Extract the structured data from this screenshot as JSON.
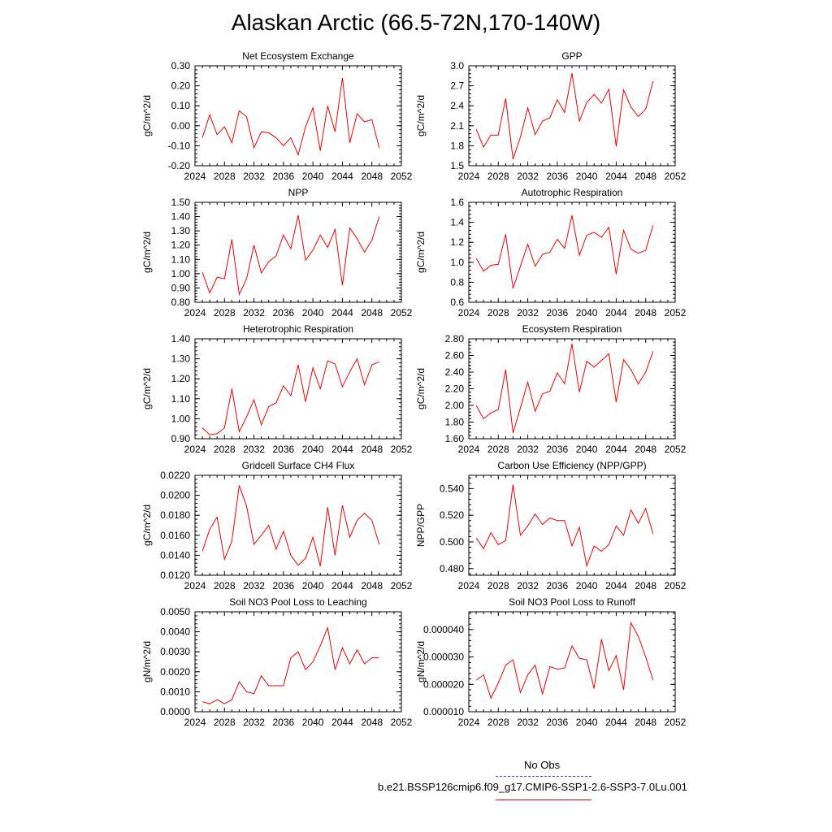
{
  "title": "Alaskan Arctic (66.5-72N,170-140W)",
  "legend": {
    "obs_label": "No Obs",
    "obs_color": "#4444cc",
    "model_label": "b.e21.BSSP126cmip6.f09_g17.CMIP6-SSP1-2.6-SSP3-7.0Lu.001",
    "model_color": "#ee0000"
  },
  "chart_data": [
    {
      "type": "line",
      "title": "Net Ecosystem Exchange",
      "ylabel": "gC/m^2/d",
      "xlim": [
        2024,
        2052
      ],
      "ylim": [
        -0.2,
        0.3
      ],
      "xticks": [
        "2024",
        "2028",
        "2032",
        "2036",
        "2040",
        "2044",
        "2048",
        "2052"
      ],
      "yticks": [
        "-0.20",
        "-0.10",
        "0.00",
        "0.10",
        "0.20",
        "0.30"
      ],
      "series": [
        {
          "color": "#ee0000",
          "x": [
            2025,
            2026,
            2027,
            2028,
            2029,
            2030,
            2031,
            2032,
            2033,
            2034,
            2035,
            2036,
            2037,
            2038,
            2039,
            2040,
            2041,
            2042,
            2043,
            2044,
            2045,
            2046,
            2047,
            2048,
            2049
          ],
          "values": [
            -0.06,
            0.055,
            -0.045,
            -0.005,
            -0.085,
            0.075,
            0.045,
            -0.11,
            -0.03,
            -0.035,
            -0.06,
            -0.1,
            -0.06,
            -0.145,
            -0.005,
            0.09,
            -0.125,
            0.1,
            -0.03,
            0.24,
            -0.085,
            0.06,
            0.02,
            0.03,
            -0.11
          ]
        }
      ]
    },
    {
      "type": "line",
      "title": "GPP",
      "ylabel": "gC/m^2/d",
      "xlim": [
        2024,
        2052
      ],
      "ylim": [
        1.5,
        3.0
      ],
      "xticks": [
        "2024",
        "2028",
        "2032",
        "2036",
        "2040",
        "2044",
        "2048",
        "2052"
      ],
      "yticks": [
        "1.5",
        "1.8",
        "2.1",
        "2.4",
        "2.7",
        "3.0"
      ],
      "series": [
        {
          "color": "#ee0000",
          "x": [
            2025,
            2026,
            2027,
            2028,
            2029,
            2030,
            2031,
            2032,
            2033,
            2034,
            2035,
            2036,
            2037,
            2038,
            2039,
            2040,
            2041,
            2042,
            2043,
            2044,
            2045,
            2046,
            2047,
            2048,
            2049
          ],
          "values": [
            2.05,
            1.78,
            1.96,
            1.96,
            2.51,
            1.6,
            1.93,
            2.37,
            1.97,
            2.17,
            2.22,
            2.49,
            2.3,
            2.89,
            2.17,
            2.45,
            2.57,
            2.44,
            2.65,
            1.79,
            2.64,
            2.38,
            2.24,
            2.35,
            2.77
          ]
        }
      ]
    },
    {
      "type": "line",
      "title": "NPP",
      "ylabel": "gC/m^2/d",
      "xlim": [
        2024,
        2052
      ],
      "ylim": [
        0.8,
        1.5
      ],
      "xticks": [
        "2024",
        "2028",
        "2032",
        "2036",
        "2040",
        "2044",
        "2048",
        "2052"
      ],
      "yticks": [
        "0.80",
        "0.90",
        "1.00",
        "1.10",
        "1.20",
        "1.30",
        "1.40",
        "1.50"
      ],
      "series": [
        {
          "color": "#ee0000",
          "x": [
            2025,
            2026,
            2027,
            2028,
            2029,
            2030,
            2031,
            2032,
            2033,
            2034,
            2035,
            2036,
            2037,
            2038,
            2039,
            2040,
            2041,
            2042,
            2043,
            2044,
            2045,
            2046,
            2047,
            2048,
            2049
          ],
          "values": [
            1.01,
            0.865,
            0.975,
            0.965,
            1.24,
            0.855,
            0.965,
            1.2,
            1.005,
            1.085,
            1.125,
            1.27,
            1.175,
            1.41,
            1.095,
            1.165,
            1.27,
            1.185,
            1.31,
            0.92,
            1.32,
            1.245,
            1.15,
            1.235,
            1.4
          ]
        }
      ]
    },
    {
      "type": "line",
      "title": "Autotrophic Respiration",
      "ylabel": "gC/m^2/d",
      "xlim": [
        2024,
        2052
      ],
      "ylim": [
        0.6,
        1.6
      ],
      "xticks": [
        "2024",
        "2028",
        "2032",
        "2036",
        "2040",
        "2044",
        "2048",
        "2052"
      ],
      "yticks": [
        "0.6",
        "0.8",
        "1.0",
        "1.2",
        "1.4",
        "1.6"
      ],
      "series": [
        {
          "color": "#ee0000",
          "x": [
            2025,
            2026,
            2027,
            2028,
            2029,
            2030,
            2031,
            2032,
            2033,
            2034,
            2035,
            2036,
            2037,
            2038,
            2039,
            2040,
            2041,
            2042,
            2043,
            2044,
            2045,
            2046,
            2047,
            2048,
            2049
          ],
          "values": [
            1.04,
            0.91,
            0.97,
            0.98,
            1.28,
            0.74,
            0.96,
            1.18,
            0.96,
            1.08,
            1.1,
            1.23,
            1.14,
            1.47,
            1.07,
            1.27,
            1.3,
            1.25,
            1.35,
            0.88,
            1.32,
            1.13,
            1.09,
            1.12,
            1.37
          ]
        }
      ]
    },
    {
      "type": "line",
      "title": "Heterotrophic Respiration",
      "ylabel": "gC/m^2/d",
      "xlim": [
        2024,
        2052
      ],
      "ylim": [
        0.9,
        1.4
      ],
      "xticks": [
        "2024",
        "2028",
        "2032",
        "2036",
        "2040",
        "2044",
        "2048",
        "2052"
      ],
      "yticks": [
        "0.90",
        "1.00",
        "1.10",
        "1.20",
        "1.30",
        "1.40"
      ],
      "series": [
        {
          "color": "#ee0000",
          "x": [
            2025,
            2026,
            2027,
            2028,
            2029,
            2030,
            2031,
            2032,
            2033,
            2034,
            2035,
            2036,
            2037,
            2038,
            2039,
            2040,
            2041,
            2042,
            2043,
            2044,
            2045,
            2046,
            2047,
            2048,
            2049
          ],
          "values": [
            0.955,
            0.92,
            0.925,
            0.955,
            1.15,
            0.935,
            1.01,
            1.095,
            0.97,
            1.06,
            1.08,
            1.165,
            1.115,
            1.27,
            1.085,
            1.255,
            1.15,
            1.29,
            1.275,
            1.16,
            1.235,
            1.3,
            1.17,
            1.27,
            1.285
          ]
        }
      ]
    },
    {
      "type": "line",
      "title": "Ecosystem Respiration",
      "ylabel": "gC/m^2/d",
      "xlim": [
        2024,
        2052
      ],
      "ylim": [
        1.6,
        2.8
      ],
      "xticks": [
        "2024",
        "2028",
        "2032",
        "2036",
        "2040",
        "2044",
        "2048",
        "2052"
      ],
      "yticks": [
        "1.60",
        "1.80",
        "2.00",
        "2.20",
        "2.40",
        "2.60",
        "2.80"
      ],
      "series": [
        {
          "color": "#ee0000",
          "x": [
            2025,
            2026,
            2027,
            2028,
            2029,
            2030,
            2031,
            2032,
            2033,
            2034,
            2035,
            2036,
            2037,
            2038,
            2039,
            2040,
            2041,
            2042,
            2043,
            2044,
            2045,
            2046,
            2047,
            2048,
            2049
          ],
          "values": [
            2.0,
            1.84,
            1.91,
            1.95,
            2.43,
            1.67,
            1.97,
            2.28,
            1.93,
            2.14,
            2.17,
            2.39,
            2.26,
            2.74,
            2.16,
            2.53,
            2.46,
            2.54,
            2.62,
            2.04,
            2.55,
            2.43,
            2.26,
            2.4,
            2.65
          ]
        }
      ]
    },
    {
      "type": "line",
      "title": "Gridcell Surface CH4 Flux",
      "ylabel": "gC/m^2/d",
      "xlim": [
        2024,
        2052
      ],
      "ylim": [
        0.012,
        0.022
      ],
      "xticks": [
        "2024",
        "2028",
        "2032",
        "2036",
        "2040",
        "2044",
        "2048",
        "2052"
      ],
      "yticks": [
        "0.0120",
        "0.0140",
        "0.0160",
        "0.0180",
        "0.0200",
        "0.0220"
      ],
      "series": [
        {
          "color": "#ee0000",
          "x": [
            2025,
            2026,
            2027,
            2028,
            2029,
            2030,
            2031,
            2032,
            2033,
            2034,
            2035,
            2036,
            2037,
            2038,
            2039,
            2040,
            2041,
            2042,
            2043,
            2044,
            2045,
            2046,
            2047,
            2048,
            2049
          ],
          "values": [
            0.0144,
            0.0166,
            0.0178,
            0.0136,
            0.0154,
            0.021,
            0.0189,
            0.0151,
            0.016,
            0.017,
            0.0146,
            0.0164,
            0.014,
            0.013,
            0.0137,
            0.0158,
            0.0129,
            0.0188,
            0.014,
            0.019,
            0.0158,
            0.0175,
            0.0182,
            0.0175,
            0.0151
          ]
        }
      ]
    },
    {
      "type": "line",
      "title": "Carbon Use Efficiency (NPP/GPP)",
      "ylabel": "NPP/GPP",
      "xlim": [
        2024,
        2052
      ],
      "ylim": [
        0.475,
        0.55
      ],
      "xticks": [
        "2024",
        "2028",
        "2032",
        "2036",
        "2040",
        "2044",
        "2048",
        "2052"
      ],
      "yticks": [
        "0.480",
        "0.500",
        "0.520",
        "0.540"
      ],
      "ytick_values": [
        0.48,
        0.5,
        0.52,
        0.54
      ],
      "series": [
        {
          "color": "#ee0000",
          "x": [
            2025,
            2026,
            2027,
            2028,
            2029,
            2030,
            2031,
            2032,
            2033,
            2034,
            2035,
            2036,
            2037,
            2038,
            2039,
            2040,
            2041,
            2042,
            2043,
            2044,
            2045,
            2046,
            2047,
            2048,
            2049
          ],
          "values": [
            0.503,
            0.495,
            0.507,
            0.498,
            0.501,
            0.543,
            0.505,
            0.512,
            0.521,
            0.513,
            0.518,
            0.516,
            0.516,
            0.497,
            0.511,
            0.482,
            0.497,
            0.493,
            0.498,
            0.512,
            0.505,
            0.524,
            0.514,
            0.525,
            0.506
          ]
        }
      ]
    },
    {
      "type": "line",
      "title": "Soil NO3 Pool Loss to Leaching",
      "ylabel": "gN/m^2/d",
      "xlim": [
        2024,
        2052
      ],
      "ylim": [
        0.0,
        0.005
      ],
      "xticks": [
        "2024",
        "2028",
        "2032",
        "2036",
        "2040",
        "2044",
        "2048",
        "2052"
      ],
      "yticks": [
        "0.0000",
        "0.0010",
        "0.0020",
        "0.0030",
        "0.0040",
        "0.0050"
      ],
      "series": [
        {
          "color": "#ee0000",
          "x": [
            2025,
            2026,
            2027,
            2028,
            2029,
            2030,
            2031,
            2032,
            2033,
            2034,
            2035,
            2036,
            2037,
            2038,
            2039,
            2040,
            2041,
            2042,
            2043,
            2044,
            2045,
            2046,
            2047,
            2048,
            2049
          ],
          "values": [
            0.0005,
            0.0004,
            0.0006,
            0.0004,
            0.0006,
            0.0015,
            0.001,
            0.0009,
            0.0018,
            0.0013,
            0.0013,
            0.0013,
            0.0027,
            0.003,
            0.0021,
            0.0025,
            0.0033,
            0.0042,
            0.0021,
            0.0032,
            0.0024,
            0.0031,
            0.0024,
            0.0027,
            0.0027
          ]
        }
      ]
    },
    {
      "type": "line",
      "title": "Soil NO3 Pool Loss to Runoff",
      "ylabel": "gN/m^2/d",
      "xlim": [
        2024,
        2052
      ],
      "ylim": [
        1e-05,
        4.65e-05
      ],
      "xticks": [
        "2024",
        "2028",
        "2032",
        "2036",
        "2040",
        "2044",
        "2048",
        "2052"
      ],
      "yticks": [
        "0.000010",
        "0.000020",
        "0.000030",
        "0.000040"
      ],
      "ytick_values": [
        1e-05,
        2e-05,
        3e-05,
        4e-05
      ],
      "series": [
        {
          "color": "#ee0000",
          "x": [
            2025,
            2026,
            2027,
            2028,
            2029,
            2030,
            2031,
            2032,
            2033,
            2034,
            2035,
            2036,
            2037,
            2038,
            2039,
            2040,
            2041,
            2042,
            2043,
            2044,
            2045,
            2046,
            2047,
            2048,
            2049
          ],
          "values": [
            2.15e-05,
            2.35e-05,
            1.5e-05,
            2.05e-05,
            2.7e-05,
            2.9e-05,
            1.7e-05,
            2.35e-05,
            2.7e-05,
            1.65e-05,
            2.65e-05,
            2.55e-05,
            2.6e-05,
            3.4e-05,
            2.95e-05,
            2.9e-05,
            1.85e-05,
            3.65e-05,
            2.5e-05,
            3.05e-05,
            1.8e-05,
            4.25e-05,
            3.75e-05,
            3e-05,
            2.15e-05
          ]
        }
      ]
    }
  ]
}
